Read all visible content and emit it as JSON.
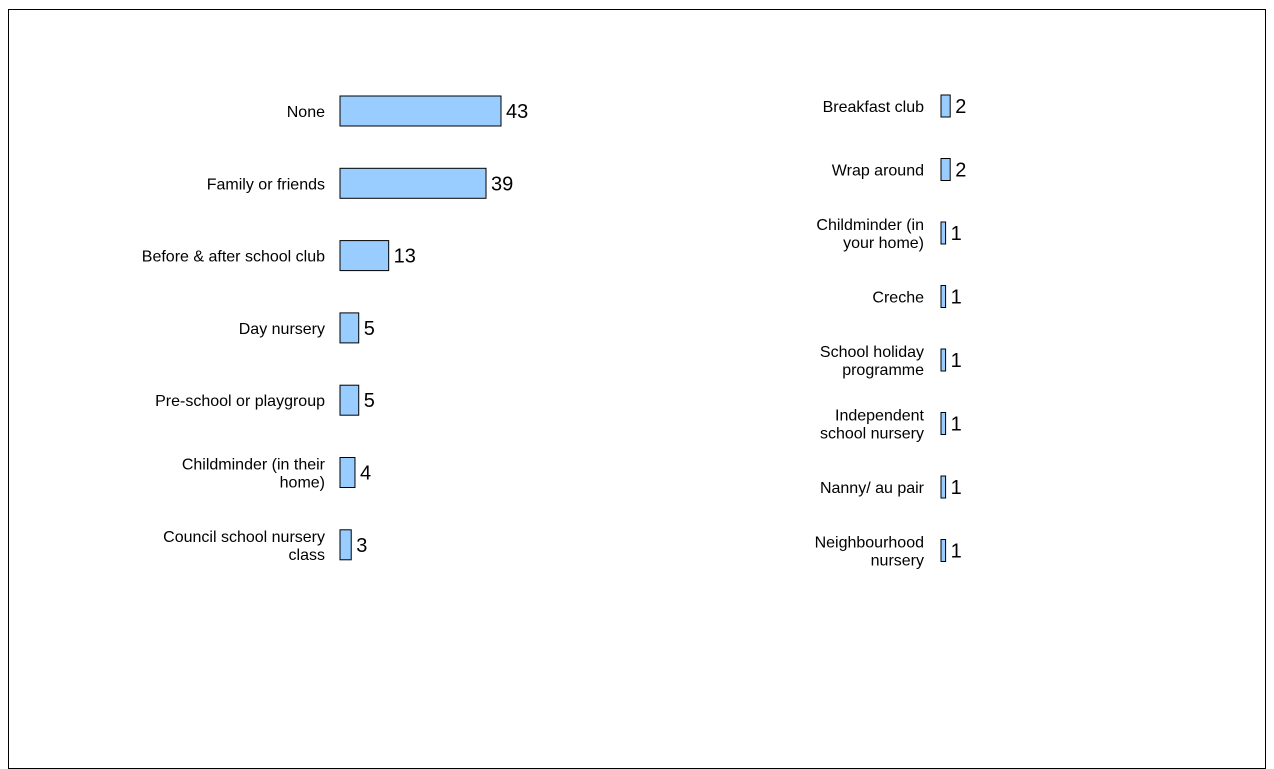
{
  "chart_data": [
    {
      "type": "bar",
      "orientation": "horizontal",
      "categories": [
        "None",
        "Family or friends",
        "Before & after school club",
        "Day nursery",
        "Pre-school or playgroup",
        "Childminder (in their home)",
        "Council school nursery class"
      ],
      "category_lines": [
        [
          "None"
        ],
        [
          "Family or friends"
        ],
        [
          "Before & after school club"
        ],
        [
          "Day nursery"
        ],
        [
          "Pre-school or playgroup"
        ],
        [
          "Childminder (in their",
          "home)"
        ],
        [
          "Council school nursery",
          "class"
        ]
      ],
      "values": [
        43,
        39,
        13,
        5,
        5,
        4,
        3
      ],
      "bar_color": "#99ccff",
      "grid": false,
      "legend": "none"
    },
    {
      "type": "bar",
      "orientation": "horizontal",
      "categories": [
        "Breakfast club",
        "Wrap around",
        "Childminder (in your home)",
        "Creche",
        "School holiday programme",
        "Independent school nursery",
        "Nanny/ au pair",
        "Neighbourhood nursery"
      ],
      "category_lines": [
        [
          "Breakfast club"
        ],
        [
          "Wrap around"
        ],
        [
          "Childminder (in",
          "your home)"
        ],
        [
          "Creche"
        ],
        [
          "School holiday",
          "programme"
        ],
        [
          "Independent",
          "school nursery"
        ],
        [
          "Nanny/ au pair"
        ],
        [
          "Neighbourhood",
          "nursery"
        ]
      ],
      "values": [
        2,
        2,
        1,
        1,
        1,
        1,
        1,
        1
      ],
      "bar_color": "#99ccff",
      "grid": false,
      "legend": "none"
    }
  ]
}
